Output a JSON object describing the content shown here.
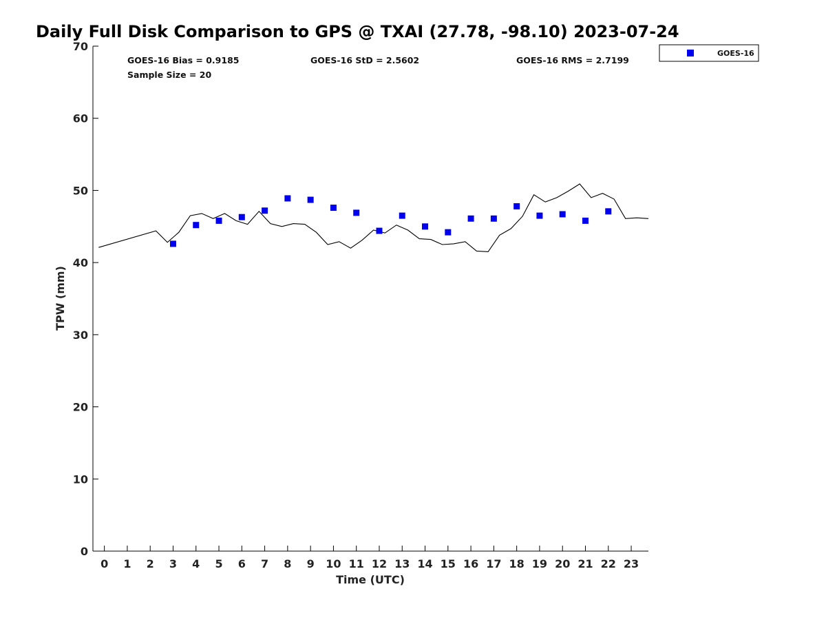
{
  "chart_data": {
    "type": "scatter",
    "title": "Daily Full Disk Comparison to GPS @ TXAI (27.78, -98.10) 2023-07-24",
    "xlabel": "Time (UTC)",
    "ylabel": "TPW (mm)",
    "xlim": [
      -0.5,
      23.75
    ],
    "ylim": [
      0,
      70
    ],
    "x_ticks": [
      0,
      1,
      2,
      3,
      4,
      5,
      6,
      7,
      8,
      9,
      10,
      11,
      12,
      13,
      14,
      15,
      16,
      17,
      18,
      19,
      20,
      21,
      22,
      23
    ],
    "y_ticks": [
      0,
      10,
      20,
      30,
      40,
      50,
      60,
      70
    ],
    "grid": false,
    "legend_position": "top-right (outside plot)",
    "stats": {
      "bias": "GOES-16 Bias = 0.9185",
      "std": "GOES-16 StD = 2.5602",
      "rms": "GOES-16 RMS = 2.7199",
      "sample_size": "Sample Size = 20"
    },
    "series": [
      {
        "name": "GOES-16",
        "kind": "points",
        "color": "#0000ee",
        "marker": "square",
        "x": [
          3,
          4,
          5,
          6,
          7,
          8,
          9,
          10,
          11,
          12,
          13,
          14,
          15,
          16,
          17,
          18,
          19,
          20,
          21,
          22
        ],
        "y": [
          42.6,
          45.2,
          45.8,
          46.3,
          47.2,
          48.9,
          48.7,
          47.6,
          46.9,
          44.4,
          46.5,
          45.0,
          44.2,
          46.1,
          46.1,
          47.8,
          46.5,
          46.7,
          45.8,
          47.1
        ]
      },
      {
        "kind": "line",
        "color": "#000000",
        "x": [
          -0.25,
          2.25,
          2.75,
          3.25,
          3.75,
          4.25,
          4.75,
          5.25,
          5.75,
          6.25,
          6.75,
          7.25,
          7.75,
          8.25,
          8.75,
          9.25,
          9.75,
          10.25,
          10.75,
          11.25,
          11.75,
          12.25,
          12.75,
          13.25,
          13.75,
          14.25,
          14.75,
          15.25,
          15.75,
          16.25,
          16.75,
          17.25,
          17.75,
          18.25,
          18.75,
          19.25,
          19.75,
          20.25,
          20.75,
          21.25,
          21.75,
          22.25,
          22.75,
          23.25,
          23.75
        ],
        "y": [
          42.1,
          44.4,
          42.8,
          44.2,
          46.5,
          46.8,
          46.1,
          46.8,
          45.8,
          45.3,
          47.1,
          45.4,
          45.0,
          45.4,
          45.3,
          44.2,
          42.5,
          42.9,
          42.0,
          43.1,
          44.5,
          44.1,
          45.2,
          44.5,
          43.3,
          43.2,
          42.5,
          42.6,
          42.9,
          41.6,
          41.5,
          43.8,
          44.7,
          46.4,
          49.4,
          48.4,
          49.0,
          49.9,
          50.9,
          49.0,
          49.6,
          48.8,
          46.1,
          46.2,
          46.1
        ]
      }
    ]
  }
}
